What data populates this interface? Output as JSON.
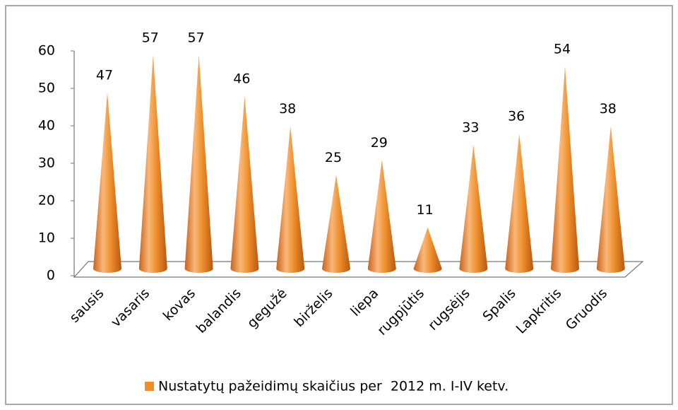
{
  "chart_data": {
    "type": "cone",
    "categories": [
      "sausis",
      "vasaris",
      "kovas",
      "balandis",
      "gegužė",
      "birželis",
      "liepa",
      "rugpjūtis",
      "rugsėjis",
      "Spalis",
      "Lapkritis",
      "Gruodis"
    ],
    "series": [
      {
        "name": "Nustatytų pažeidimų skaičius per  2012 m. I-IV ketv.",
        "color": "#f28c28",
        "values": [
          47,
          57,
          57,
          46,
          38,
          25,
          29,
          11,
          33,
          36,
          54,
          38
        ]
      }
    ],
    "ylim": [
      0,
      60
    ],
    "yticks": [
      0,
      10,
      20,
      30,
      40,
      50,
      60
    ],
    "grid": false,
    "legend": "bottom"
  }
}
